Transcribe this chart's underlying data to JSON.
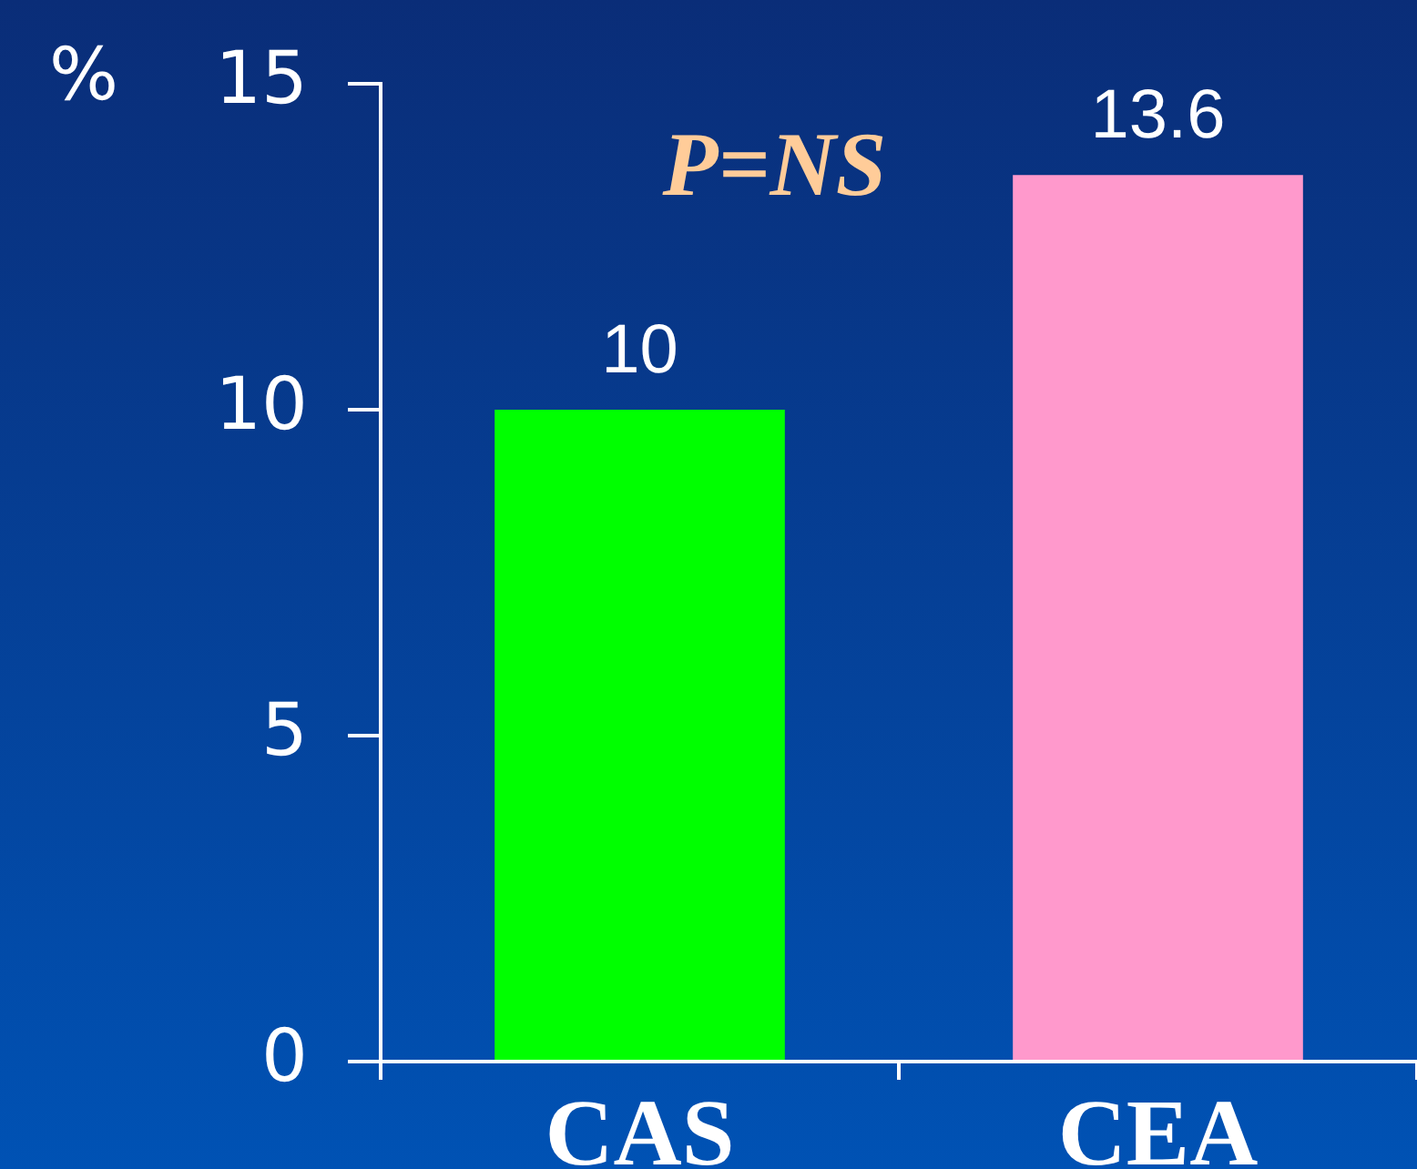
{
  "chart_data": {
    "type": "bar",
    "ylabel": "%",
    "annotations": [
      "P=NS"
    ],
    "categories": [
      "CAS",
      "CEA"
    ],
    "values": [
      10,
      13.6
    ],
    "colors": [
      "#00ff00",
      "#ff99cc"
    ],
    "ylim": [
      0,
      15
    ],
    "yticks": [
      0,
      5,
      10,
      15
    ],
    "data_labels": true,
    "grid": false,
    "legend": false
  }
}
